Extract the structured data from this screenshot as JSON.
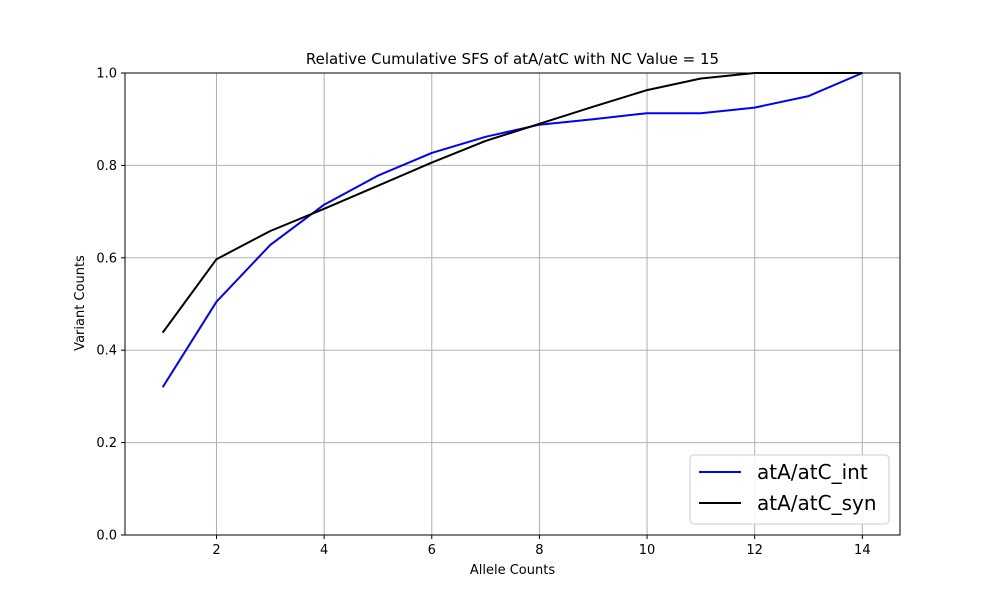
{
  "chart_data": {
    "type": "line",
    "title": "Relative Cumulative SFS of atA/atC with NC Value = 15",
    "xlabel": "Allele Counts",
    "ylabel": "Variant Counts",
    "xlim": [
      0.3,
      14.7
    ],
    "ylim": [
      0,
      1.0
    ],
    "xticks": [
      2,
      4,
      6,
      8,
      10,
      12,
      14
    ],
    "yticks": [
      0.0,
      0.2,
      0.4,
      0.6,
      0.8,
      1.0
    ],
    "xtick_labels": [
      "2",
      "4",
      "6",
      "8",
      "10",
      "12",
      "14"
    ],
    "ytick_labels": [
      "0.0",
      "0.2",
      "0.4",
      "0.6",
      "0.8",
      "1.0"
    ],
    "grid": true,
    "legend_position": "lower-right",
    "x": [
      1,
      2,
      3,
      4,
      5,
      6,
      7,
      8,
      9,
      10,
      11,
      12,
      13,
      14
    ],
    "series": [
      {
        "name": "atA/atC_int",
        "color": "#0000ff",
        "values": [
          0.32,
          0.505,
          0.628,
          0.715,
          0.778,
          0.827,
          0.862,
          0.888,
          0.9,
          0.913,
          0.913,
          0.925,
          0.95,
          1.0
        ]
      },
      {
        "name": "atA/atC_syn",
        "color": "#000000",
        "values": [
          0.438,
          0.597,
          0.658,
          0.706,
          0.756,
          0.806,
          0.853,
          0.89,
          0.927,
          0.963,
          0.988,
          1.0,
          1.0,
          1.0
        ]
      }
    ]
  }
}
